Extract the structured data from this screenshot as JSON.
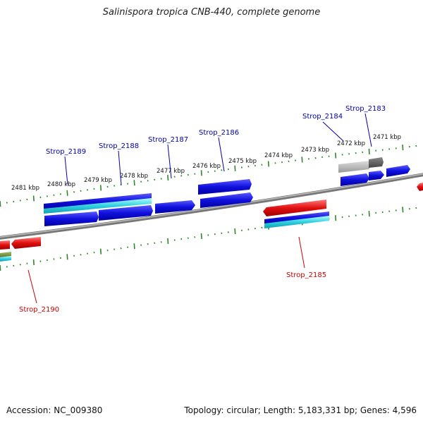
{
  "title": "Salinispora tropica CNB-440, complete genome",
  "footer": {
    "accession": "Accession: NC_009380",
    "summary": "Topology: circular; Length: 5,183,331 bp; Genes: 4,596"
  },
  "colors": {
    "forward_cds": "#1010dd",
    "reverse_cds": "#e01010",
    "rna": "#30d0e0",
    "pseudo": "#999999",
    "backbone": "#888888",
    "ticks": "#2a8a2a",
    "label_fwd": "#0000aa",
    "label_rev": "#cc0000"
  },
  "scale_labels": [
    "2481 kbp",
    "2480 kbp",
    "2479 kbp",
    "2478 kbp",
    "2477 kbp",
    "2476 kbp",
    "2475 kbp",
    "2474 kbp",
    "2473 kbp",
    "2472 kbp",
    "2471 kbp"
  ],
  "gene_labels": [
    {
      "name": "Strop_2189",
      "strand": "forward"
    },
    {
      "name": "Strop_2188",
      "strand": "forward"
    },
    {
      "name": "Strop_2187",
      "strand": "forward"
    },
    {
      "name": "Strop_2186",
      "strand": "forward"
    },
    {
      "name": "Strop_2184",
      "strand": "forward"
    },
    {
      "name": "Strop_2183",
      "strand": "forward"
    },
    {
      "name": "Strop_2185",
      "strand": "reverse"
    },
    {
      "name": "Strop_2190",
      "strand": "reverse"
    }
  ]
}
